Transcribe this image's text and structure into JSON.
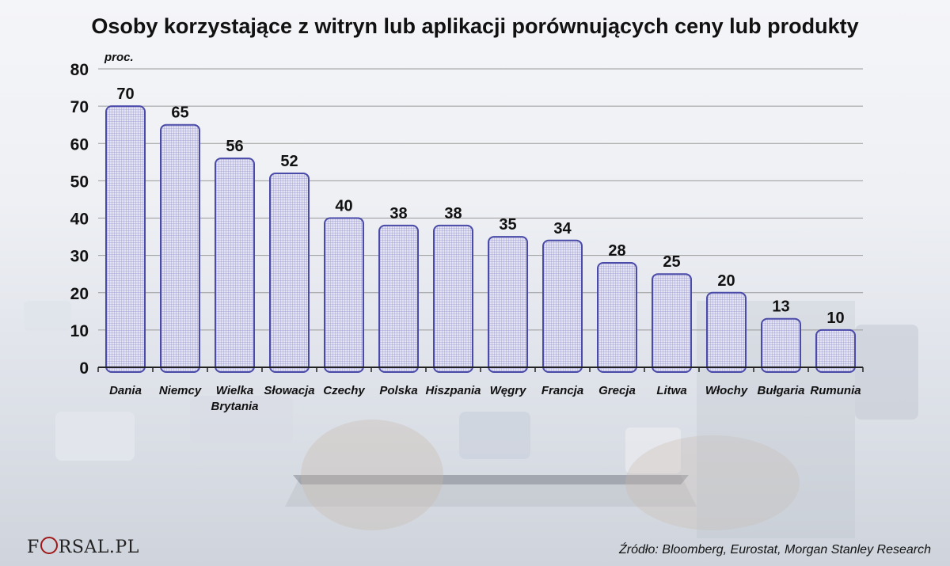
{
  "chart_data": {
    "type": "bar",
    "title": "Osoby korzystające z witryn lub aplikacji porównujących ceny lub produkty",
    "unit_label": "proc.",
    "categories": [
      [
        "Dania"
      ],
      [
        "Niemcy"
      ],
      [
        "Wielka",
        "Brytania"
      ],
      [
        "Słowacja"
      ],
      [
        "Czechy"
      ],
      [
        "Polska"
      ],
      [
        "Hiszpania"
      ],
      [
        "Węgry"
      ],
      [
        "Francja"
      ],
      [
        "Grecja"
      ],
      [
        "Litwa"
      ],
      [
        "Włochy"
      ],
      [
        "Bułgaria"
      ],
      [
        "Rumunia"
      ]
    ],
    "values": [
      70,
      65,
      56,
      52,
      40,
      38,
      38,
      35,
      34,
      28,
      25,
      20,
      13,
      10
    ],
    "yticks": [
      0,
      10,
      20,
      30,
      40,
      50,
      60,
      70,
      80
    ],
    "ylim": [
      0,
      80
    ],
    "grid": true,
    "bar_color": "#4a4aa8",
    "bar_fill": "#d6d6ee"
  },
  "footer": {
    "logo_left": "F",
    "logo_right": "RSAL.PL",
    "source": "Źródło: Bloomberg,  Eurostat, Morgan Stanley Research"
  }
}
